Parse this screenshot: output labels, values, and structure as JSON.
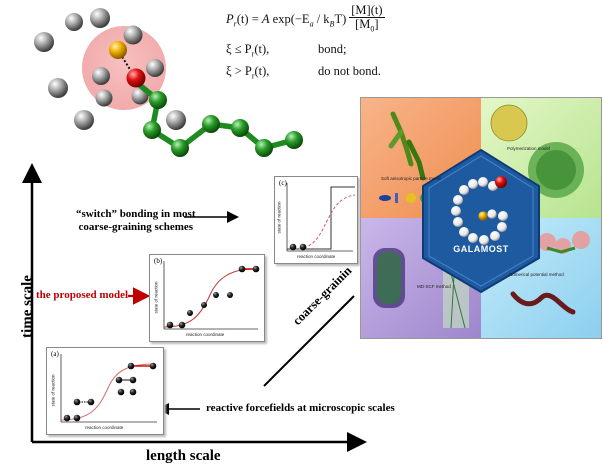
{
  "equation": {
    "line1": "P_r(t) = A exp(−E_a / k_B T) [M](t) / [M_0]",
    "lhs": "P",
    "lhs_sub": "r",
    "lhs_t": "(t) = ",
    "A": "A",
    "exp": " exp",
    "exp_arg": "(−E",
    "exp_arg_sub": "a",
    "exp_arg2": " / k",
    "kb_sub": "B",
    "exp_arg3": "T)",
    "frac_num": "[M](t)",
    "frac_den": "[M",
    "frac_den_sub": "0",
    "frac_den_end": "]",
    "cond1_lhs": "ξ ≤ P",
    "cond1_sub": "r",
    "cond1_t": "(t),",
    "cond1_result": "bond;",
    "cond2_lhs": "ξ > P",
    "cond2_sub": "r",
    "cond2_t": "(t),",
    "cond2_result": "do not bond."
  },
  "axes": {
    "y_title": "time  scale",
    "x_title": "length  scale"
  },
  "labels": {
    "switch": "“switch” bonding in most\ncoarse-graining schemes",
    "switch_line1": "“switch” bonding in most",
    "switch_line2": "coarse-graining schemes",
    "proposed": "the proposed model",
    "reactive": "reactive forcefields at microscopic scales",
    "coarse_graining": "coarse-grainin"
  },
  "panels": {
    "a": {
      "tag": "(a)",
      "ylabel": "state of reaction",
      "xlabel": "reaction coordinate"
    },
    "b": {
      "tag": "(b)",
      "ylabel": "state of reaction",
      "xlabel": "reaction coordinate"
    },
    "c": {
      "tag": "(c)",
      "ylabel": "state of reaction",
      "xlabel": "reaction coordinate"
    }
  },
  "galamost": {
    "logo_letter": "G",
    "name": "GALAMOST",
    "quadrants": {
      "top_left": "Soft anisotropic particle model",
      "top_right": "Polymerization model",
      "bottom_left": "MD-SCF method",
      "bottom_right": "Numerical potential method"
    }
  },
  "colors": {
    "proposed_label": "#c00000",
    "bond_chain": "#1f8a1f",
    "halo": "#f0a0a0",
    "galamost_blue": "#1e5aa0",
    "panel_tl_bg": "#f3a06a",
    "panel_tr_bg": "#cfeeb0",
    "panel_bl_bg": "#b9a5dc",
    "panel_br_bg": "#a8dcf2"
  }
}
